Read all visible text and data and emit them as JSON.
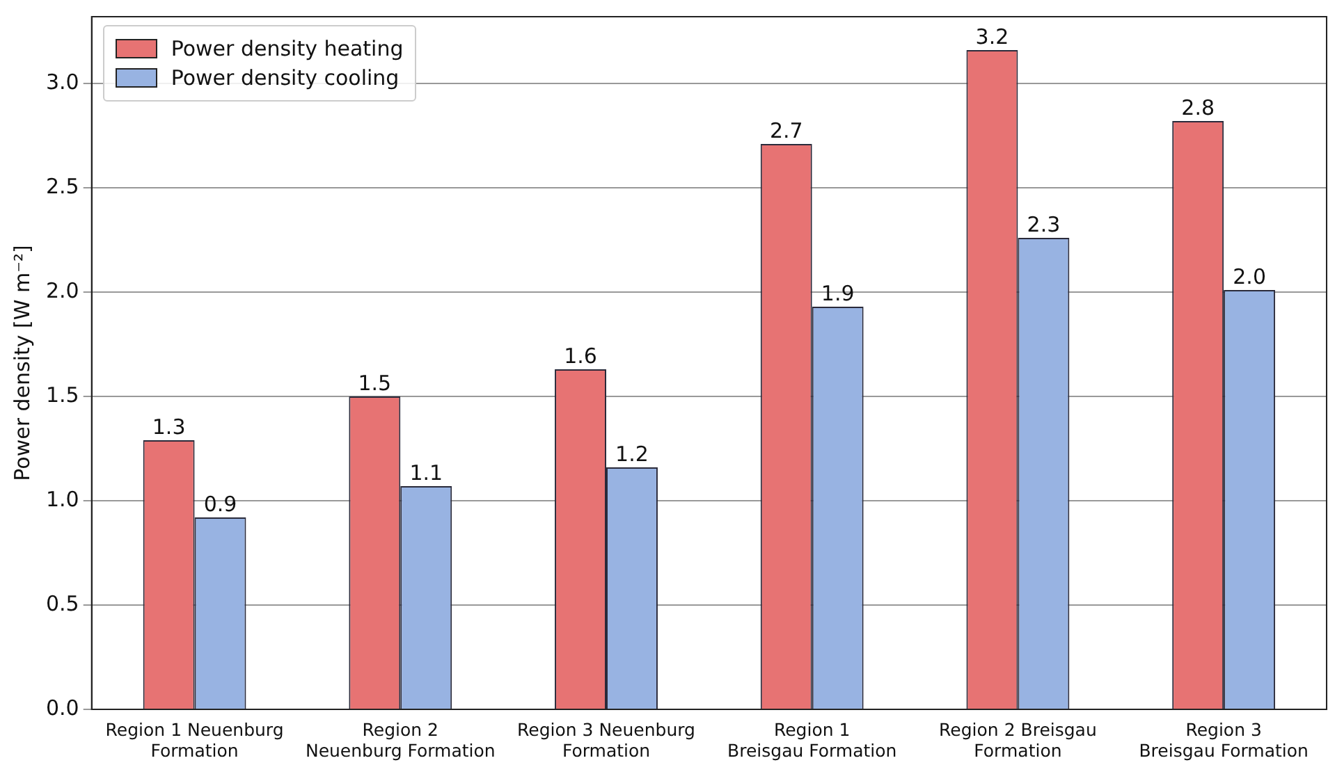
{
  "chart_data": {
    "type": "bar",
    "ylabel": "Power density [W m⁻²]",
    "categories": [
      "Region 1 Neuenburg\nFormation",
      "Region 2\nNeuenburg Formation",
      "Region 3 Neuenburg\nFormation",
      "Region 1\nBreisgau Formation",
      "Region 2 Breisgau\nFormation",
      "Region 3\nBreisgau Formation"
    ],
    "series": [
      {
        "name": "Power density heating",
        "color": "#e77373",
        "values": [
          1.29,
          1.5,
          1.63,
          2.71,
          3.16,
          2.82
        ],
        "value_labels": [
          "1.3",
          "1.5",
          "1.6",
          "2.7",
          "3.2",
          "2.8"
        ]
      },
      {
        "name": "Power density cooling",
        "color": "#98b3e2",
        "values": [
          0.92,
          1.07,
          1.16,
          1.93,
          2.26,
          2.01
        ],
        "value_labels": [
          "0.9",
          "1.1",
          "1.2",
          "1.9",
          "2.3",
          "2.0"
        ]
      }
    ],
    "ylim": [
      0,
      3.32
    ],
    "yticks": [
      {
        "value": 0,
        "label": "0.0"
      },
      {
        "value": 0.5,
        "label": "0.5"
      },
      {
        "value": 1,
        "label": "1.0"
      },
      {
        "value": 1.5,
        "label": "1.5"
      },
      {
        "value": 2,
        "label": "2.0"
      },
      {
        "value": 2.5,
        "label": "2.5"
      },
      {
        "value": 3,
        "label": "3.0"
      }
    ],
    "grid": "y",
    "legend": "top left"
  }
}
